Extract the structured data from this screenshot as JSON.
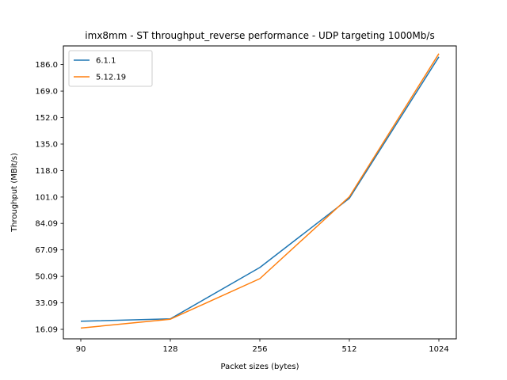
{
  "chart_data": {
    "type": "line",
    "title": "imx8mm - ST throughput_reverse performance - UDP targeting 1000Mb/s",
    "xlabel": "Packet sizes (bytes)",
    "ylabel": "Throughput (MBit/s)",
    "categories": [
      "90",
      "128",
      "256",
      "512",
      "1024"
    ],
    "y_ticks": [
      "16.09",
      "33.09",
      "50.09",
      "67.09",
      "84.09",
      "101.0",
      "118.0",
      "135.0",
      "152.0",
      "169.0",
      "186.0"
    ],
    "ylim": [
      10.0,
      198.0
    ],
    "grid": false,
    "legend_position": "top-left",
    "series": [
      {
        "name": "6.1.1",
        "color": "#1f77b4",
        "values": [
          21.3,
          22.8,
          55.8,
          100.2,
          191.0
        ]
      },
      {
        "name": "5.12.19",
        "color": "#ff7f0e",
        "values": [
          16.9,
          22.6,
          48.6,
          101.2,
          193.0
        ]
      }
    ]
  }
}
